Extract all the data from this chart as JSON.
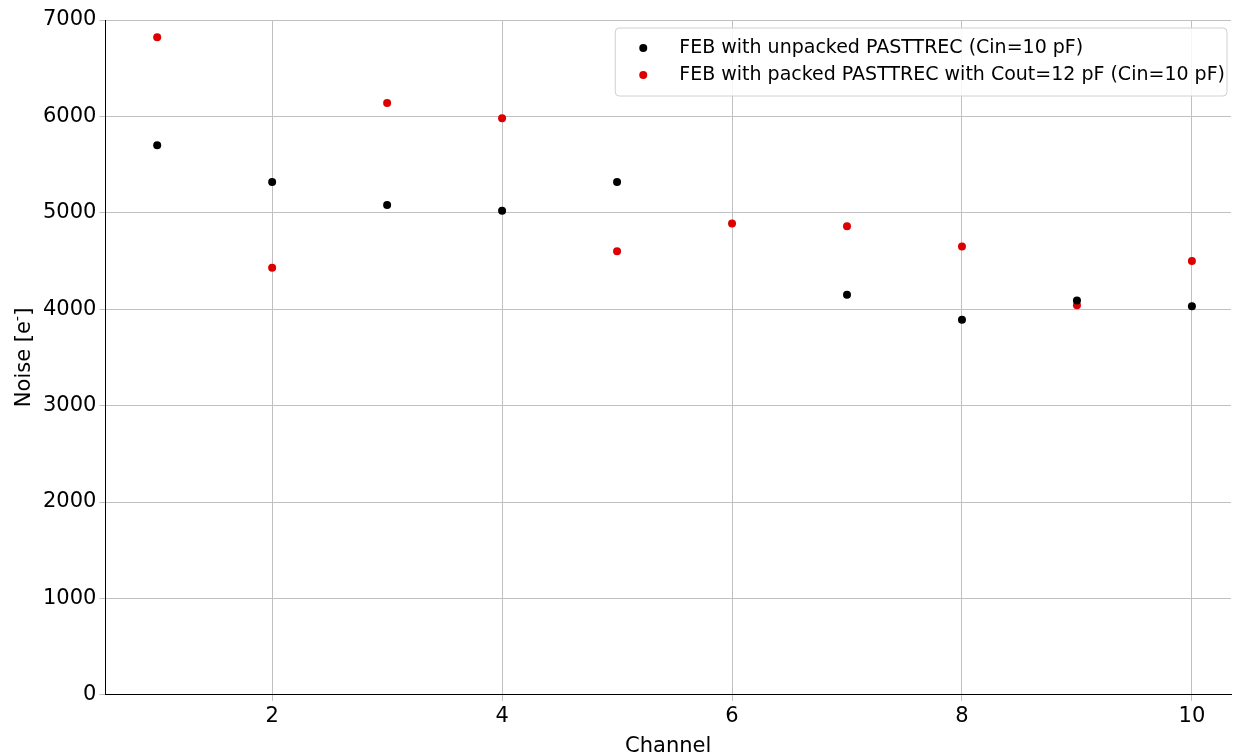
{
  "chart_data": {
    "type": "scatter",
    "xlabel": "Channel",
    "ylabel": "Noise [e$^{-}$]",
    "x": [
      1,
      2,
      3,
      4,
      5,
      6,
      7,
      8,
      9,
      10
    ],
    "series": [
      {
        "name": "FEB with unpacked PASTTREC (Cin=10 pF)",
        "color": "#000000",
        "values": [
          5700,
          5320,
          5080,
          5020,
          5320,
          null,
          4150,
          3890,
          4090,
          4030
        ]
      },
      {
        "name": "FEB with packed PASTTREC with Cout=12 pF (Cin=10 pF)",
        "color": "#dd0000",
        "values": [
          6820,
          4430,
          6140,
          5980,
          4600,
          4890,
          4860,
          4650,
          4040,
          4500
        ]
      }
    ],
    "xlim": [
      0.55,
      10.34
    ],
    "xticks": [
      2,
      4,
      6,
      8,
      10
    ],
    "ylim": [
      0,
      7000
    ],
    "yticks": [
      0,
      1000,
      2000,
      3000,
      4000,
      5000,
      6000,
      7000
    ],
    "grid": true,
    "legend": "top right",
    "marker": "circle"
  }
}
